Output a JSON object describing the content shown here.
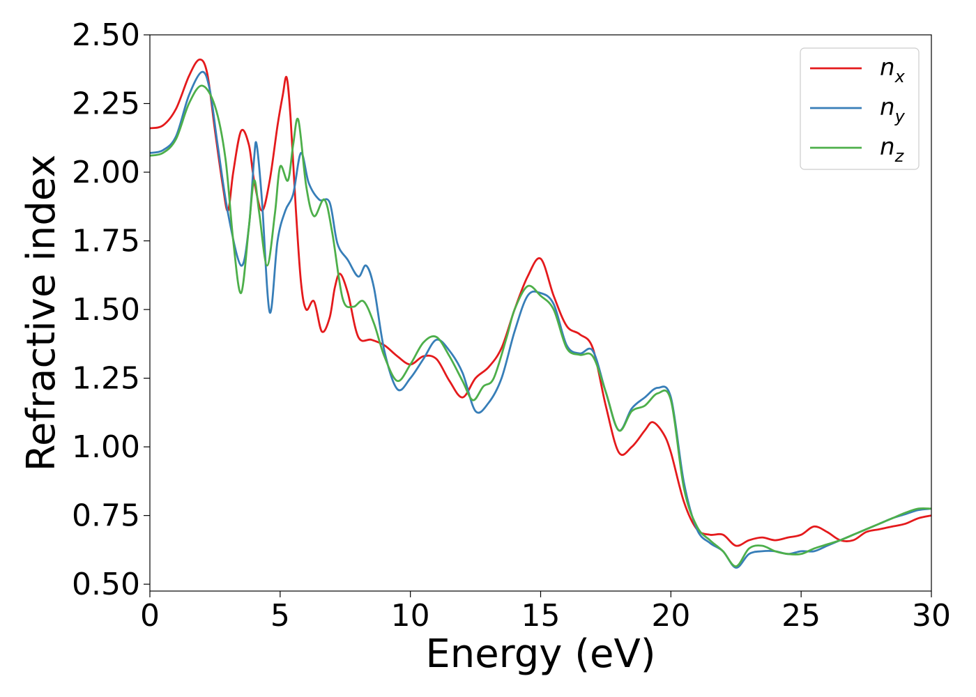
{
  "chart_data": {
    "type": "line",
    "xlabel": "Energy (eV)",
    "ylabel": "Refractive index",
    "xlim": [
      0,
      30
    ],
    "ylim": [
      0.475,
      2.5
    ],
    "grid": false,
    "legend_position": "top-right",
    "xticks": [
      0,
      5,
      10,
      15,
      20,
      25,
      30
    ],
    "xtick_labels": [
      "0",
      "5",
      "10",
      "15",
      "20",
      "25",
      "30"
    ],
    "yticks": [
      0.5,
      0.75,
      1.0,
      1.25,
      1.5,
      1.75,
      2.0,
      2.25,
      2.5
    ],
    "ytick_labels": [
      "0.50",
      "0.75",
      "1.00",
      "1.25",
      "1.50",
      "1.75",
      "2.00",
      "2.25",
      "2.50"
    ],
    "series": [
      {
        "name": "n",
        "subscript": "x",
        "color": "#e41a1c",
        "points": [
          [
            0,
            2.16
          ],
          [
            0.5,
            2.17
          ],
          [
            1,
            2.23
          ],
          [
            1.5,
            2.35
          ],
          [
            1.9,
            2.41
          ],
          [
            2.2,
            2.36
          ],
          [
            2.5,
            2.15
          ],
          [
            2.8,
            1.95
          ],
          [
            3.0,
            1.86
          ],
          [
            3.2,
            2.0
          ],
          [
            3.5,
            2.15
          ],
          [
            3.8,
            2.1
          ],
          [
            4.0,
            1.97
          ],
          [
            4.3,
            1.86
          ],
          [
            4.6,
            1.97
          ],
          [
            4.9,
            2.17
          ],
          [
            5.1,
            2.28
          ],
          [
            5.25,
            2.345
          ],
          [
            5.4,
            2.2
          ],
          [
            5.6,
            1.87
          ],
          [
            5.8,
            1.6
          ],
          [
            6.0,
            1.5
          ],
          [
            6.3,
            1.53
          ],
          [
            6.6,
            1.42
          ],
          [
            6.9,
            1.47
          ],
          [
            7.1,
            1.58
          ],
          [
            7.3,
            1.63
          ],
          [
            7.6,
            1.56
          ],
          [
            8.0,
            1.4
          ],
          [
            8.5,
            1.39
          ],
          [
            9.0,
            1.37
          ],
          [
            9.5,
            1.33
          ],
          [
            10.0,
            1.3
          ],
          [
            10.5,
            1.33
          ],
          [
            11.0,
            1.32
          ],
          [
            11.5,
            1.24
          ],
          [
            12.0,
            1.18
          ],
          [
            12.5,
            1.25
          ],
          [
            13.0,
            1.29
          ],
          [
            13.5,
            1.36
          ],
          [
            14.0,
            1.5
          ],
          [
            14.5,
            1.62
          ],
          [
            15.0,
            1.685
          ],
          [
            15.5,
            1.55
          ],
          [
            16.0,
            1.44
          ],
          [
            16.5,
            1.41
          ],
          [
            17.0,
            1.36
          ],
          [
            17.5,
            1.15
          ],
          [
            18.0,
            0.98
          ],
          [
            18.5,
            1.0
          ],
          [
            19.0,
            1.06
          ],
          [
            19.3,
            1.09
          ],
          [
            19.7,
            1.05
          ],
          [
            20.0,
            0.98
          ],
          [
            20.5,
            0.8
          ],
          [
            21.0,
            0.7
          ],
          [
            21.5,
            0.68
          ],
          [
            22.0,
            0.68
          ],
          [
            22.5,
            0.64
          ],
          [
            23.0,
            0.66
          ],
          [
            23.5,
            0.67
          ],
          [
            24.0,
            0.66
          ],
          [
            24.5,
            0.67
          ],
          [
            25.0,
            0.68
          ],
          [
            25.5,
            0.71
          ],
          [
            26.0,
            0.69
          ],
          [
            26.5,
            0.66
          ],
          [
            27.0,
            0.66
          ],
          [
            27.5,
            0.69
          ],
          [
            28.0,
            0.7
          ],
          [
            28.5,
            0.71
          ],
          [
            29.0,
            0.72
          ],
          [
            29.5,
            0.74
          ],
          [
            30.0,
            0.75
          ]
        ]
      },
      {
        "name": "n",
        "subscript": "y",
        "color": "#377eb8",
        "points": [
          [
            0,
            2.07
          ],
          [
            0.5,
            2.08
          ],
          [
            1,
            2.13
          ],
          [
            1.5,
            2.28
          ],
          [
            2.0,
            2.365
          ],
          [
            2.3,
            2.3
          ],
          [
            2.6,
            2.1
          ],
          [
            3.0,
            1.85
          ],
          [
            3.5,
            1.66
          ],
          [
            3.8,
            1.8
          ],
          [
            4.0,
            2.05
          ],
          [
            4.1,
            2.1
          ],
          [
            4.3,
            1.9
          ],
          [
            4.6,
            1.49
          ],
          [
            4.9,
            1.75
          ],
          [
            5.2,
            1.86
          ],
          [
            5.5,
            1.92
          ],
          [
            5.8,
            2.07
          ],
          [
            6.1,
            1.96
          ],
          [
            6.5,
            1.9
          ],
          [
            6.9,
            1.89
          ],
          [
            7.2,
            1.74
          ],
          [
            7.6,
            1.68
          ],
          [
            8.0,
            1.62
          ],
          [
            8.3,
            1.66
          ],
          [
            8.6,
            1.58
          ],
          [
            9.0,
            1.35
          ],
          [
            9.5,
            1.21
          ],
          [
            10.0,
            1.25
          ],
          [
            10.5,
            1.32
          ],
          [
            11.0,
            1.39
          ],
          [
            11.5,
            1.35
          ],
          [
            12.0,
            1.27
          ],
          [
            12.5,
            1.13
          ],
          [
            13.0,
            1.16
          ],
          [
            13.5,
            1.25
          ],
          [
            14.0,
            1.42
          ],
          [
            14.5,
            1.55
          ],
          [
            15.0,
            1.56
          ],
          [
            15.5,
            1.52
          ],
          [
            16.0,
            1.37
          ],
          [
            16.5,
            1.34
          ],
          [
            17.0,
            1.35
          ],
          [
            17.5,
            1.2
          ],
          [
            18.0,
            1.06
          ],
          [
            18.5,
            1.14
          ],
          [
            19.0,
            1.18
          ],
          [
            19.5,
            1.215
          ],
          [
            20.0,
            1.18
          ],
          [
            20.5,
            0.87
          ],
          [
            21.0,
            0.7
          ],
          [
            21.5,
            0.65
          ],
          [
            22.0,
            0.62
          ],
          [
            22.5,
            0.56
          ],
          [
            23.0,
            0.61
          ],
          [
            23.5,
            0.62
          ],
          [
            24.0,
            0.62
          ],
          [
            24.5,
            0.61
          ],
          [
            25.0,
            0.62
          ],
          [
            25.5,
            0.62
          ],
          [
            26.0,
            0.64
          ],
          [
            26.5,
            0.66
          ],
          [
            27.0,
            0.68
          ],
          [
            27.5,
            0.7
          ],
          [
            28.0,
            0.72
          ],
          [
            28.5,
            0.74
          ],
          [
            29.0,
            0.755
          ],
          [
            29.5,
            0.77
          ],
          [
            30.0,
            0.775
          ]
        ]
      },
      {
        "name": "n",
        "subscript": "z",
        "color": "#4daf4a",
        "points": [
          [
            0,
            2.06
          ],
          [
            0.5,
            2.07
          ],
          [
            1,
            2.12
          ],
          [
            1.5,
            2.25
          ],
          [
            2.0,
            2.315
          ],
          [
            2.5,
            2.24
          ],
          [
            2.9,
            2.05
          ],
          [
            3.2,
            1.75
          ],
          [
            3.5,
            1.56
          ],
          [
            3.8,
            1.8
          ],
          [
            4.0,
            1.97
          ],
          [
            4.2,
            1.85
          ],
          [
            4.5,
            1.66
          ],
          [
            4.8,
            1.85
          ],
          [
            5.0,
            2.02
          ],
          [
            5.3,
            1.97
          ],
          [
            5.5,
            2.1
          ],
          [
            5.7,
            2.19
          ],
          [
            6.0,
            1.95
          ],
          [
            6.3,
            1.84
          ],
          [
            6.7,
            1.9
          ],
          [
            7.0,
            1.78
          ],
          [
            7.4,
            1.54
          ],
          [
            7.8,
            1.51
          ],
          [
            8.2,
            1.53
          ],
          [
            8.6,
            1.45
          ],
          [
            9.0,
            1.33
          ],
          [
            9.5,
            1.24
          ],
          [
            10.0,
            1.3
          ],
          [
            10.5,
            1.38
          ],
          [
            11.0,
            1.4
          ],
          [
            11.5,
            1.33
          ],
          [
            12.0,
            1.24
          ],
          [
            12.4,
            1.17
          ],
          [
            12.8,
            1.22
          ],
          [
            13.2,
            1.25
          ],
          [
            13.7,
            1.4
          ],
          [
            14.0,
            1.5
          ],
          [
            14.5,
            1.585
          ],
          [
            15.0,
            1.55
          ],
          [
            15.5,
            1.5
          ],
          [
            16.0,
            1.36
          ],
          [
            16.5,
            1.335
          ],
          [
            17.0,
            1.33
          ],
          [
            17.5,
            1.2
          ],
          [
            18.0,
            1.06
          ],
          [
            18.5,
            1.13
          ],
          [
            19.0,
            1.15
          ],
          [
            19.5,
            1.195
          ],
          [
            20.0,
            1.17
          ],
          [
            20.5,
            0.85
          ],
          [
            21.0,
            0.71
          ],
          [
            21.5,
            0.66
          ],
          [
            22.0,
            0.62
          ],
          [
            22.5,
            0.565
          ],
          [
            23.0,
            0.63
          ],
          [
            23.5,
            0.64
          ],
          [
            24.0,
            0.62
          ],
          [
            24.5,
            0.61
          ],
          [
            25.0,
            0.61
          ],
          [
            25.5,
            0.63
          ],
          [
            26.0,
            0.645
          ],
          [
            26.5,
            0.66
          ],
          [
            27.0,
            0.68
          ],
          [
            27.5,
            0.7
          ],
          [
            28.0,
            0.72
          ],
          [
            28.5,
            0.74
          ],
          [
            29.0,
            0.76
          ],
          [
            29.5,
            0.775
          ],
          [
            30.0,
            0.775
          ]
        ]
      }
    ]
  }
}
